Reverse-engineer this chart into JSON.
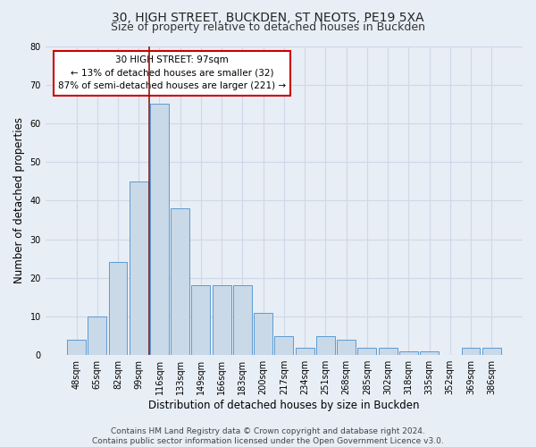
{
  "title1": "30, HIGH STREET, BUCKDEN, ST NEOTS, PE19 5XA",
  "title2": "Size of property relative to detached houses in Buckden",
  "xlabel": "Distribution of detached houses by size in Buckden",
  "ylabel": "Number of detached properties",
  "categories": [
    "48sqm",
    "65sqm",
    "82sqm",
    "99sqm",
    "116sqm",
    "133sqm",
    "149sqm",
    "166sqm",
    "183sqm",
    "200sqm",
    "217sqm",
    "234sqm",
    "251sqm",
    "268sqm",
    "285sqm",
    "302sqm",
    "318sqm",
    "335sqm",
    "352sqm",
    "369sqm",
    "386sqm"
  ],
  "values": [
    4,
    10,
    24,
    45,
    65,
    38,
    18,
    18,
    18,
    11,
    5,
    2,
    5,
    4,
    2,
    2,
    1,
    1,
    0,
    2,
    2
  ],
  "bar_color": "#c9d9e8",
  "bar_edge_color": "#5b9bd5",
  "grid_color": "#d0d8e8",
  "background_color": "#e8eef5",
  "vline_x_index": 3.5,
  "vline_color": "#8b1a1a",
  "annotation_text": "30 HIGH STREET: 97sqm\n← 13% of detached houses are smaller (32)\n87% of semi-detached houses are larger (221) →",
  "annotation_box_color": "white",
  "annotation_box_edge_color": "#cc0000",
  "ylim": [
    0,
    80
  ],
  "yticks": [
    0,
    10,
    20,
    30,
    40,
    50,
    60,
    70,
    80
  ],
  "footer_text": "Contains HM Land Registry data © Crown copyright and database right 2024.\nContains public sector information licensed under the Open Government Licence v3.0.",
  "title1_fontsize": 10,
  "title2_fontsize": 9,
  "xlabel_fontsize": 8.5,
  "ylabel_fontsize": 8.5,
  "tick_fontsize": 7,
  "annotation_fontsize": 7.5,
  "footer_fontsize": 6.5
}
